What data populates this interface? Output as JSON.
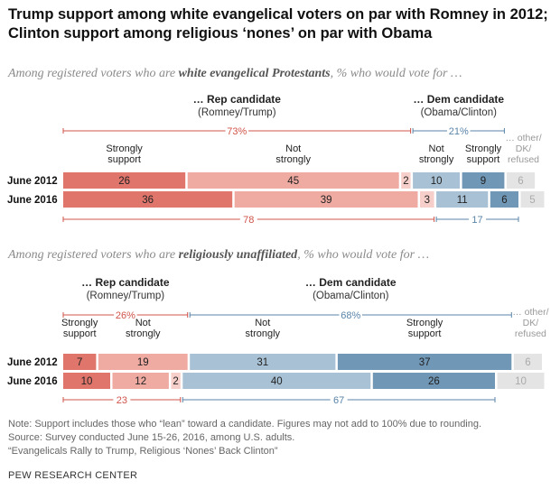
{
  "title_line1": "Trump support among white evangelical voters on par with Romney in 2012;",
  "title_line2": "Clinton support among religious ‘nones’ on par with Obama",
  "panels": [
    {
      "subtitle_pre": "Among registered voters who are ",
      "subtitle_em": "white evangelical Protestants",
      "subtitle_post": ", % who would vote for …"
    },
    {
      "subtitle_pre": "Among registered voters who are ",
      "subtitle_em": "religiously unaffiliated",
      "subtitle_post": ", % who would vote for …"
    }
  ],
  "notes": [
    "Note: Support includes those who “lean” toward a candidate. Figures may not add to 100% due to rounding.",
    "Source: Survey conducted June 15-26, 2016, among U.S. adults.",
    "“Evangelicals Rally to Trump, Religious ‘Nones’ Back Clinton”"
  ],
  "brand": "PEW RESEARCH CENTER",
  "colors": {
    "rep_strong": "#e0756b",
    "rep_not": "#efaaa2",
    "rep_lean": "#f6cfca",
    "dem_lean": "#d2dfea",
    "dem_not": "#a8c1d4",
    "dem_strong": "#7097b5",
    "other": "#e4e4e4",
    "rep_text": "#d0544a",
    "dem_text": "#5a84a8"
  },
  "chart_data": [
    {
      "type": "bar",
      "stacked": true,
      "orientation": "horizontal",
      "group_headers": [
        {
          "title": "… Rep candidate",
          "sub": "(Romney/Trump)"
        },
        {
          "title": "… Dem candidate",
          "sub": "(Obama/Clinton)"
        }
      ],
      "segment_labels": [
        "Strongly\nsupport",
        "Not\nstrongly",
        "",
        "",
        "Not\nstrongly",
        "Strongly\nsupport",
        "… other/\nDK/\nrefused"
      ],
      "categories": [
        "June 2012",
        "June 2016"
      ],
      "series": [
        {
          "values": [
            26,
            36
          ]
        },
        {
          "values": [
            45,
            39
          ]
        },
        {
          "values": [
            2,
            3
          ]
        },
        {
          "values": [
            null,
            null
          ]
        },
        {
          "values": [
            10,
            11
          ]
        },
        {
          "values": [
            9,
            6
          ]
        },
        {
          "values": [
            6,
            5
          ]
        }
      ],
      "totals_2012": {
        "rep": "73%",
        "dem": "21%"
      },
      "totals_2016": {
        "rep": "78",
        "dem": "17"
      }
    },
    {
      "type": "bar",
      "stacked": true,
      "orientation": "horizontal",
      "group_headers": [
        {
          "title": "… Rep candidate",
          "sub": "(Romney/Trump)"
        },
        {
          "title": "… Dem candidate",
          "sub": "(Obama/Clinton)"
        }
      ],
      "segment_labels": [
        "Strongly\nsupport",
        "Not\nstrongly",
        "",
        "",
        "Not\nstrongly",
        "Strongly\nsupport",
        "… other/\nDK/\nrefused"
      ],
      "categories": [
        "June 2012",
        "June 2016"
      ],
      "series": [
        {
          "values": [
            7,
            10
          ]
        },
        {
          "values": [
            19,
            12
          ]
        },
        {
          "values": [
            null,
            2
          ]
        },
        {
          "values": [
            null,
            null
          ]
        },
        {
          "values": [
            31,
            40
          ]
        },
        {
          "values": [
            37,
            26
          ]
        },
        {
          "values": [
            6,
            10
          ]
        }
      ],
      "totals_2012": {
        "rep": "26%",
        "dem": "68%"
      },
      "totals_2016": {
        "rep": "23",
        "dem": "67"
      }
    }
  ]
}
